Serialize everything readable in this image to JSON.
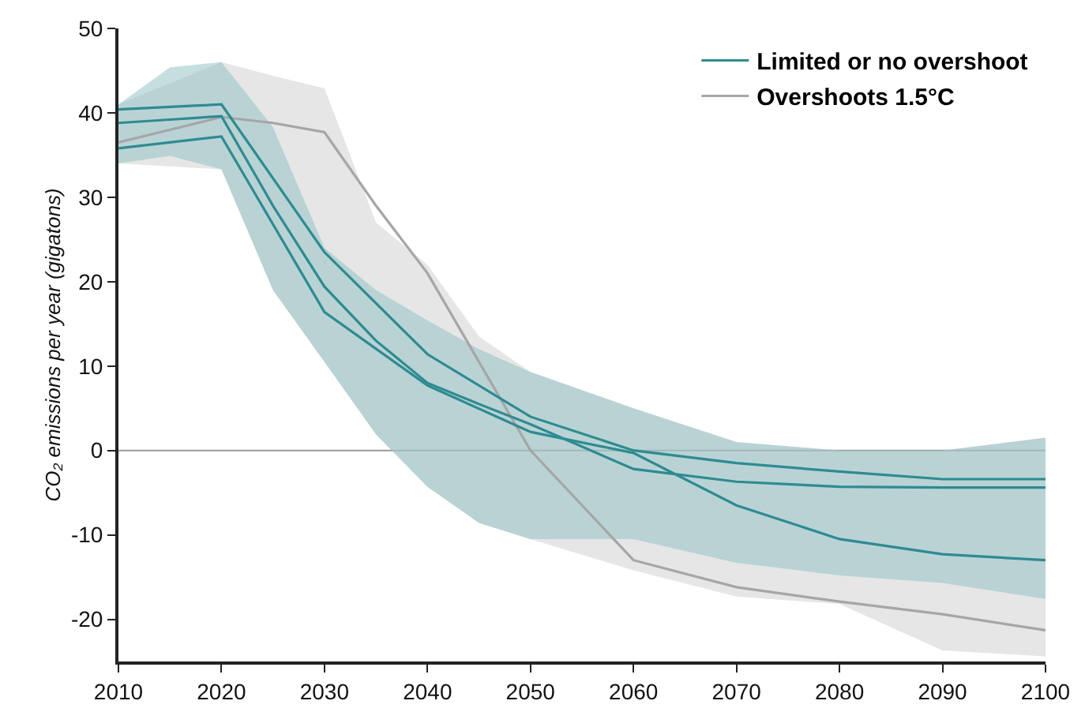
{
  "chart_data": {
    "type": "line",
    "ylabel": "CO₂ emissions per year (gigatons)",
    "xlim": [
      2010,
      2100
    ],
    "ylim": [
      -25,
      50
    ],
    "xticks": [
      2010,
      2020,
      2030,
      2040,
      2050,
      2060,
      2070,
      2080,
      2090,
      2100
    ],
    "yticks": [
      -20,
      -10,
      0,
      10,
      20,
      30,
      40,
      50
    ],
    "grid": false,
    "legend": "top right",
    "line_style": "solid",
    "marker": "none",
    "ref_lines": [
      {
        "axis": "y",
        "value": 0,
        "color": "#999999"
      }
    ],
    "series": [
      {
        "name": "Overshoots 1.5°C",
        "color": "#a6a6a6",
        "x": [
          2010,
          2020,
          2025,
          2030,
          2035,
          2040,
          2045,
          2050,
          2060,
          2070,
          2080,
          2090,
          2100
        ],
        "values": [
          36.5,
          39.5,
          38.8,
          37.7,
          29,
          21,
          10.5,
          0,
          -13,
          -16.2,
          -17.9,
          -19.4,
          -21.3
        ],
        "upper": [
          41,
          46,
          44.4,
          42.9,
          27,
          22,
          13.5,
          9.3,
          5,
          1,
          0,
          0,
          1.5
        ],
        "lower": [
          34,
          33.3,
          19,
          10.5,
          1.9,
          -4.3,
          -8.6,
          -10.5,
          -14.2,
          -17.3,
          -18.2,
          -23.7,
          -24.4
        ]
      },
      {
        "name": "Limited or no overshoot",
        "color": "#2e8b91",
        "x": [
          2010,
          2015,
          2020,
          2025,
          2030,
          2035,
          2040,
          2045,
          2050,
          2060,
          2070,
          2080,
          2090,
          2100
        ],
        "values": [
          38.8,
          39.2,
          39.6,
          29,
          19.4,
          13,
          8,
          5.5,
          3.1,
          -2.2,
          -3.7,
          -4.3,
          -4.4,
          -4.4
        ],
        "upper": [
          41,
          45.4,
          46,
          38.3,
          24,
          19,
          15.4,
          12,
          9.3,
          5,
          1,
          0,
          0,
          1.5
        ],
        "lower": [
          34,
          34.9,
          33.3,
          19,
          10.5,
          1.9,
          -4.3,
          -8.6,
          -10.5,
          -10.5,
          -13.3,
          -14.8,
          -15.7,
          -17.6
        ]
      },
      {
        "color": "#2e8b91",
        "x": [
          2010,
          2020,
          2030,
          2040,
          2050,
          2060,
          2070,
          2080,
          2090,
          2100
        ],
        "values": [
          40.4,
          41,
          23.5,
          11.4,
          4,
          0,
          -1.5,
          -2.5,
          -3.4,
          -3.4
        ]
      },
      {
        "color": "#2e8b91",
        "x": [
          2010,
          2020,
          2030,
          2040,
          2050,
          2060,
          2070,
          2080,
          2090,
          2100
        ],
        "values": [
          35.8,
          37.2,
          16.4,
          7.7,
          2.2,
          -0.3,
          -6.5,
          -10.5,
          -12.3,
          -13
        ]
      }
    ]
  }
}
